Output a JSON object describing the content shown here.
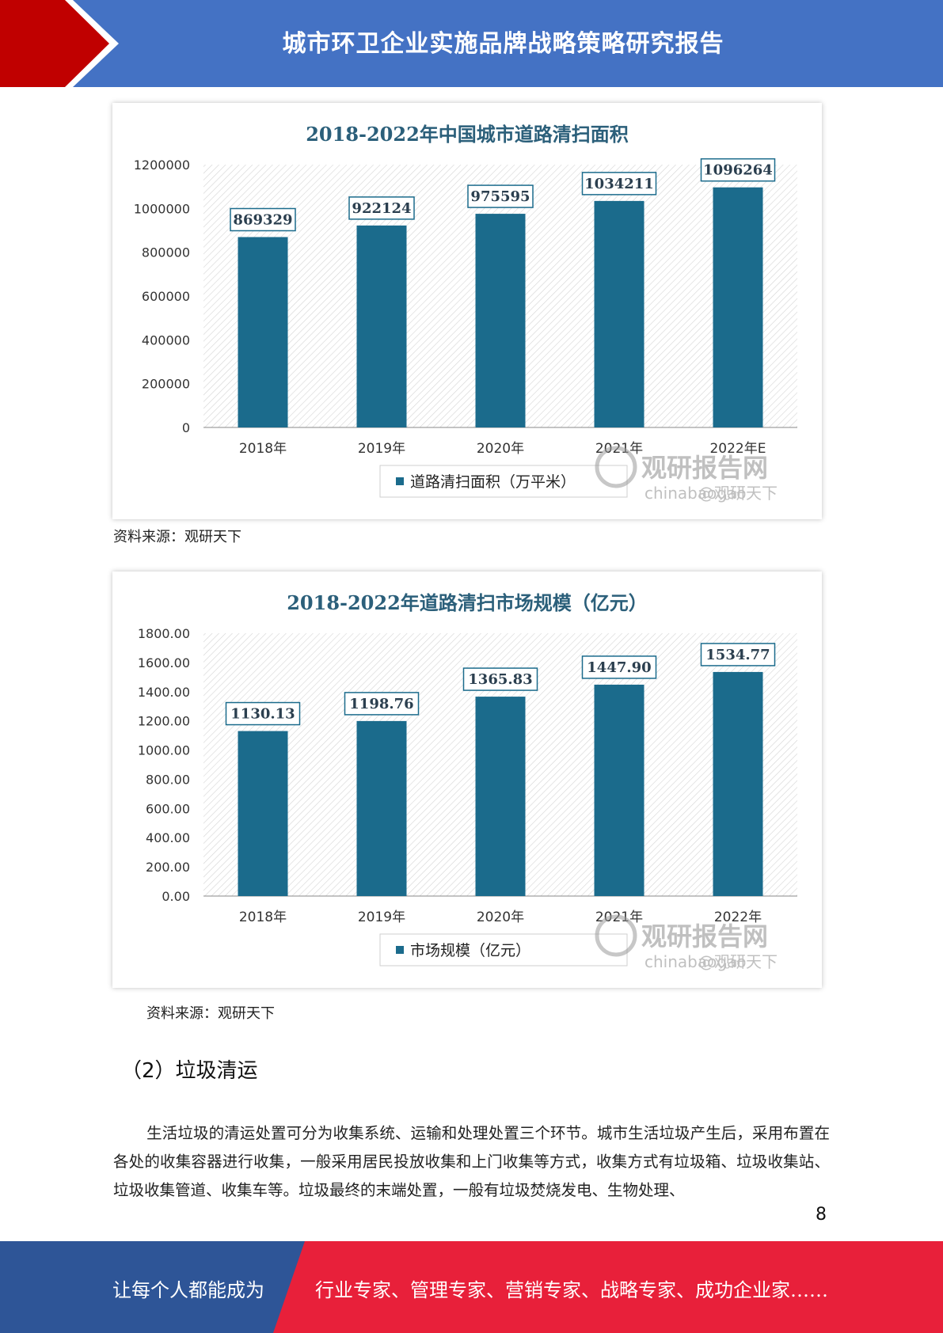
{
  "header": {
    "title": "城市环卫企业实施品牌战略策略研究报告"
  },
  "chart_data": [
    {
      "type": "bar",
      "title": "2018-2022年中国城市道路清扫面积",
      "categories": [
        "2018年",
        "2019年",
        "2020年",
        "2021年",
        "2022年E"
      ],
      "series": [
        {
          "name": "道路清扫面积（万平米）",
          "values": [
            869329,
            922124,
            975595,
            1034211,
            1096264
          ]
        }
      ],
      "value_labels": [
        "869329",
        "922124",
        "975595",
        "1034211",
        "1096264"
      ],
      "ylim": [
        0,
        1200000
      ],
      "yticks": [
        "0",
        "200000",
        "400000",
        "600000",
        "800000",
        "1000000",
        "1200000"
      ],
      "legend_position": "bottom",
      "bar_color": "#1b6b8c",
      "watermark": {
        "brand": "观研报告网",
        "sub": "chinabaogao",
        "handle": "@观研天下"
      }
    },
    {
      "type": "bar",
      "title": "2018-2022年道路清扫市场规模（亿元）",
      "categories": [
        "2018年",
        "2019年",
        "2020年",
        "2021年",
        "2022年"
      ],
      "series": [
        {
          "name": "市场规模（亿元）",
          "values": [
            1130.13,
            1198.76,
            1365.83,
            1447.9,
            1534.77
          ]
        }
      ],
      "value_labels": [
        "1130.13",
        "1198.76",
        "1365.83",
        "1447.90",
        "1534.77"
      ],
      "ylim": [
        0,
        1800
      ],
      "yticks": [
        "0.00",
        "200.00",
        "400.00",
        "600.00",
        "800.00",
        "1000.00",
        "1200.00",
        "1400.00",
        "1600.00",
        "1800.00"
      ],
      "legend_position": "bottom",
      "bar_color": "#1b6b8c",
      "watermark": {
        "brand": "观研报告网",
        "sub": "chinabaogao",
        "handle": "@观研天下"
      }
    }
  ],
  "captions": {
    "chart1": "资料来源：观研天下",
    "chart2": "资料来源：观研天下"
  },
  "section": {
    "heading": "（2）垃圾清运"
  },
  "body": {
    "paragraph": "生活垃圾的清运处置可分为收集系统、运输和处理处置三个环节。城市生活垃圾产生后，采用布置在各处的收集容器进行收集，一般采用居民投放收集和上门收集等方式，收集方式有垃圾箱、垃圾收集站、垃圾收集管道、收集车等。垃圾最终的末端处置，一般有垃圾焚烧发电、生物处理、"
  },
  "page_number": "8",
  "footer": {
    "left": "让每个人都能成为",
    "right": "行业专家、管理专家、营销专家、战略专家、成功企业家……"
  },
  "colors": {
    "header_blue": "#4472c4",
    "header_red": "#c00000",
    "footer_blue": "#2e5597",
    "footer_red": "#e8203a",
    "bar": "#1b6b8c",
    "title_blue": "#2b5f7a"
  }
}
